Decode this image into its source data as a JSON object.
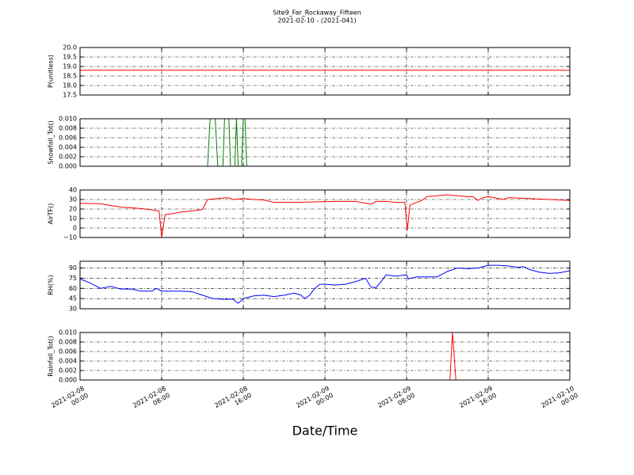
{
  "title": "Site9_Far_Rockaway_Fifteen",
  "subtitle": "2021-02-10 - (2021-041)",
  "xlabel": "Date/Time",
  "chart_data": [
    {
      "type": "line",
      "ylabel": "P(unitless)",
      "color": "#ff0000",
      "grid": true,
      "x": [
        "2021-02-08 00:00",
        "2021-02-10 00:00"
      ],
      "values": [
        18.8,
        18.8
      ],
      "xlim": [
        "2021-02-08 00:00",
        "2021-02-10 00:00"
      ],
      "xticks": [
        "2021-02-08 00:00",
        "2021-02-08 08:00",
        "2021-02-08 16:00",
        "2021-02-09 00:00",
        "2021-02-09 08:00",
        "2021-02-09 16:00",
        "2021-02-10 00:00"
      ],
      "ylim": [
        17.5,
        20
      ],
      "yticks": [
        17.5,
        {
          "value": 18,
          "label": "18.0"
        },
        18.5,
        {
          "value": 19,
          "label": "19.0"
        },
        19.5,
        {
          "value": 20,
          "label": "20.0"
        }
      ]
    },
    {
      "type": "line",
      "ylabel": "Snowfall_Tot()",
      "color": "#007f00",
      "grid": true,
      "x": [
        "2021-02-08 00:00",
        "2021-02-08 12:30",
        "2021-02-08 12:45",
        "2021-02-08 13:15",
        "2021-02-08 13:30",
        "2021-02-08 14:00",
        "2021-02-08 14:10",
        "2021-02-08 14:35",
        "2021-02-08 14:45",
        "2021-02-08 15:10",
        "2021-02-08 15:20",
        "2021-02-08 15:30",
        "2021-02-08 15:50",
        "2021-02-08 16:00",
        "2021-02-08 16:10",
        "2021-02-08 16:20",
        "2021-02-10 00:00"
      ],
      "values": [
        0,
        0,
        0.01,
        0.01,
        0,
        0,
        0.01,
        0.01,
        0,
        0,
        0.01,
        0,
        0,
        0.01,
        0.01,
        0,
        0
      ],
      "xlim": [
        "2021-02-08 00:00",
        "2021-02-10 00:00"
      ],
      "xticks": [
        "2021-02-08 00:00",
        "2021-02-08 08:00",
        "2021-02-08 16:00",
        "2021-02-09 00:00",
        "2021-02-09 08:00",
        "2021-02-09 16:00",
        "2021-02-10 00:00"
      ],
      "ylim": [
        0,
        0.01
      ],
      "yticks": [
        {
          "value": 0,
          "label": "0.000"
        },
        {
          "value": 0.002,
          "label": "0.002"
        },
        {
          "value": 0.004,
          "label": "0.004"
        },
        {
          "value": 0.006,
          "label": "0.006"
        },
        {
          "value": 0.008,
          "label": "0.008"
        },
        {
          "value": 0.01,
          "label": "0.010"
        }
      ]
    },
    {
      "type": "line",
      "ylabel": "AirTF()",
      "color": "#ff0000",
      "grid": true,
      "x": [
        "2021-02-08 00:00",
        "2021-02-08 02:00",
        "2021-02-08 04:00",
        "2021-02-08 06:00",
        "2021-02-08 07:45",
        "2021-02-08 08:00",
        "2021-02-08 08:20",
        "2021-02-08 09:00",
        "2021-02-08 10:00",
        "2021-02-08 11:00",
        "2021-02-08 12:00",
        "2021-02-08 12:30",
        "2021-02-08 13:30",
        "2021-02-08 14:30",
        "2021-02-08 15:00",
        "2021-02-08 16:00",
        "2021-02-08 17:00",
        "2021-02-08 18:00",
        "2021-02-08 19:00",
        "2021-02-08 21:00",
        "2021-02-08 23:00",
        "2021-02-09 01:00",
        "2021-02-09 03:00",
        "2021-02-09 04:00",
        "2021-02-09 04:30",
        "2021-02-09 05:00",
        "2021-02-09 06:00",
        "2021-02-09 07:00",
        "2021-02-09 07:50",
        "2021-02-09 08:05",
        "2021-02-09 08:20",
        "2021-02-09 09:00",
        "2021-02-09 09:30",
        "2021-02-09 10:00",
        "2021-02-09 11:00",
        "2021-02-09 12:00",
        "2021-02-09 13:00",
        "2021-02-09 14:00",
        "2021-02-09 14:30",
        "2021-02-09 15:00",
        "2021-02-09 15:30",
        "2021-02-09 16:00",
        "2021-02-09 17:00",
        "2021-02-09 17:30",
        "2021-02-09 18:00",
        "2021-02-09 20:00",
        "2021-02-09 22:00",
        "2021-02-10 00:00"
      ],
      "values": [
        26,
        25.5,
        22,
        20.5,
        18,
        -10,
        14,
        15,
        17,
        18,
        19.5,
        30,
        31,
        32,
        30,
        31,
        30,
        29.5,
        27,
        27,
        27.5,
        28,
        28,
        26,
        25,
        28,
        28,
        27,
        27,
        -2,
        24,
        27,
        29,
        33,
        34,
        35,
        34,
        33,
        33,
        29,
        32,
        33,
        31,
        30,
        32,
        31,
        30,
        29
      ],
      "xlim": [
        "2021-02-08 00:00",
        "2021-02-10 00:00"
      ],
      "xticks": [
        "2021-02-08 00:00",
        "2021-02-08 08:00",
        "2021-02-08 16:00",
        "2021-02-09 00:00",
        "2021-02-09 08:00",
        "2021-02-09 16:00",
        "2021-02-10 00:00"
      ],
      "ylim": [
        -10,
        40
      ],
      "yticks": [
        {
          "value": -10,
          "label": "−10"
        },
        0,
        10,
        20,
        30,
        40
      ]
    },
    {
      "type": "line",
      "ylabel": "RH(%)",
      "color": "#0000ff",
      "grid": true,
      "x": [
        "2021-02-08 00:00",
        "2021-02-08 01:00",
        "2021-02-08 02:00",
        "2021-02-08 03:00",
        "2021-02-08 04:00",
        "2021-02-08 05:00",
        "2021-02-08 06:00",
        "2021-02-08 07:00",
        "2021-02-08 07:30",
        "2021-02-08 08:00",
        "2021-02-08 09:00",
        "2021-02-08 10:00",
        "2021-02-08 11:00",
        "2021-02-08 12:00",
        "2021-02-08 13:00",
        "2021-02-08 14:00",
        "2021-02-08 15:00",
        "2021-02-08 15:30",
        "2021-02-08 16:00",
        "2021-02-08 17:00",
        "2021-02-08 18:00",
        "2021-02-08 19:00",
        "2021-02-08 20:00",
        "2021-02-08 21:00",
        "2021-02-08 21:40",
        "2021-02-08 22:00",
        "2021-02-08 22:30",
        "2021-02-08 23:00",
        "2021-02-08 23:30",
        "2021-02-09 00:00",
        "2021-02-09 01:00",
        "2021-02-09 02:00",
        "2021-02-09 03:00",
        "2021-02-09 04:00",
        "2021-02-09 04:30",
        "2021-02-09 05:00",
        "2021-02-09 05:30",
        "2021-02-09 06:00",
        "2021-02-09 07:00",
        "2021-02-09 08:00",
        "2021-02-09 08:10",
        "2021-02-09 09:00",
        "2021-02-09 10:00",
        "2021-02-09 11:00",
        "2021-02-09 12:00",
        "2021-02-09 13:00",
        "2021-02-09 14:00",
        "2021-02-09 15:00",
        "2021-02-09 16:00",
        "2021-02-09 17:00",
        "2021-02-09 18:00",
        "2021-02-09 19:00",
        "2021-02-09 19:30",
        "2021-02-09 20:00",
        "2021-02-09 21:00",
        "2021-02-09 22:00",
        "2021-02-09 23:00",
        "2021-02-10 00:00"
      ],
      "values": [
        74,
        68,
        60,
        63,
        59,
        59,
        56,
        56,
        60,
        56,
        56,
        56,
        55,
        50,
        45,
        44,
        44,
        38,
        45,
        49,
        50,
        48,
        50,
        53,
        50,
        45,
        50,
        60,
        66,
        66,
        65,
        66,
        70,
        75,
        62,
        61,
        70,
        80,
        78,
        80,
        74,
        77,
        77,
        77,
        85,
        90,
        89,
        90,
        94,
        94,
        93,
        91,
        92,
        88,
        84,
        82,
        83,
        86
      ],
      "xlim": [
        "2021-02-08 00:00",
        "2021-02-10 00:00"
      ],
      "xticks": [
        "2021-02-08 00:00",
        "2021-02-08 08:00",
        "2021-02-08 16:00",
        "2021-02-09 00:00",
        "2021-02-09 08:00",
        "2021-02-09 16:00",
        "2021-02-10 00:00"
      ],
      "ylim": [
        30,
        100
      ],
      "yticks": [
        30,
        45,
        60,
        75,
        90
      ]
    },
    {
      "type": "line",
      "ylabel": "Rainfall_Tot()",
      "color": "#ff0000",
      "grid": true,
      "x": [
        "2021-02-08 00:00",
        "2021-02-09 12:15",
        "2021-02-09 12:30",
        "2021-02-09 12:50",
        "2021-02-10 00:00"
      ],
      "values": [
        0,
        0,
        0.01,
        0,
        0
      ],
      "xlim": [
        "2021-02-08 00:00",
        "2021-02-10 00:00"
      ],
      "xticks": [
        {
          "value": "2021-02-08 00:00",
          "label": "2021-02-08\n00:00"
        },
        {
          "value": "2021-02-08 08:00",
          "label": "2021-02-08\n08:00"
        },
        {
          "value": "2021-02-08 16:00",
          "label": "2021-02-08\n16:00"
        },
        {
          "value": "2021-02-09 00:00",
          "label": "2021-02-09\n00:00"
        },
        {
          "value": "2021-02-09 08:00",
          "label": "2021-02-09\n08:00"
        },
        {
          "value": "2021-02-09 16:00",
          "label": "2021-02-09\n16:00"
        },
        {
          "value": "2021-02-10 00:00",
          "label": "2021-02-10\n00:00"
        }
      ],
      "ylim": [
        0,
        0.01
      ],
      "yticks": [
        {
          "value": 0,
          "label": "0.000"
        },
        {
          "value": 0.002,
          "label": "0.002"
        },
        {
          "value": 0.004,
          "label": "0.004"
        },
        {
          "value": 0.006,
          "label": "0.006"
        },
        {
          "value": 0.008,
          "label": "0.008"
        },
        {
          "value": 0.01,
          "label": "0.010"
        }
      ]
    }
  ]
}
